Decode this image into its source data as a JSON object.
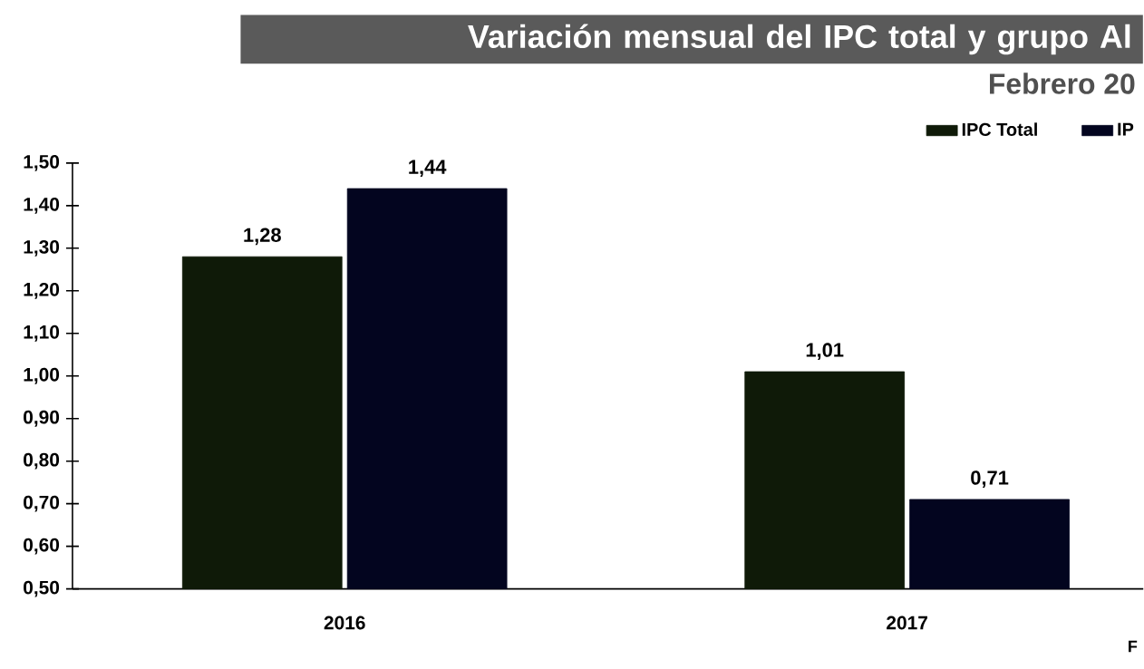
{
  "chart_data": {
    "type": "bar",
    "title": "Variación mensual del IPC total y grupo Al",
    "subtitle": "Febrero 20",
    "categories": [
      "2016",
      "2017"
    ],
    "series": [
      {
        "name": "IPC Total",
        "color": "#0f1a08",
        "values": [
          1.28,
          1.01
        ],
        "value_labels": [
          "1,28",
          "1,01"
        ]
      },
      {
        "name": "IP",
        "color": "#03051f",
        "values": [
          1.44,
          0.71
        ],
        "value_labels": [
          "1,44",
          "0,71"
        ]
      }
    ],
    "ylim": [
      0.5,
      1.5
    ],
    "yticks": [
      {
        "value": 0.5,
        "label": "0,50"
      },
      {
        "value": 0.6,
        "label": "0,60"
      },
      {
        "value": 0.7,
        "label": "0,70"
      },
      {
        "value": 0.8,
        "label": "0,80"
      },
      {
        "value": 0.9,
        "label": "0,90"
      },
      {
        "value": 1.0,
        "label": "1,00"
      },
      {
        "value": 1.1,
        "label": "1,10"
      },
      {
        "value": 1.2,
        "label": "1,20"
      },
      {
        "value": 1.3,
        "label": "1,30"
      },
      {
        "value": 1.4,
        "label": "1,40"
      },
      {
        "value": 1.5,
        "label": "1,50"
      }
    ],
    "annotations": [
      "F"
    ],
    "grid": false,
    "legend": "top right"
  }
}
